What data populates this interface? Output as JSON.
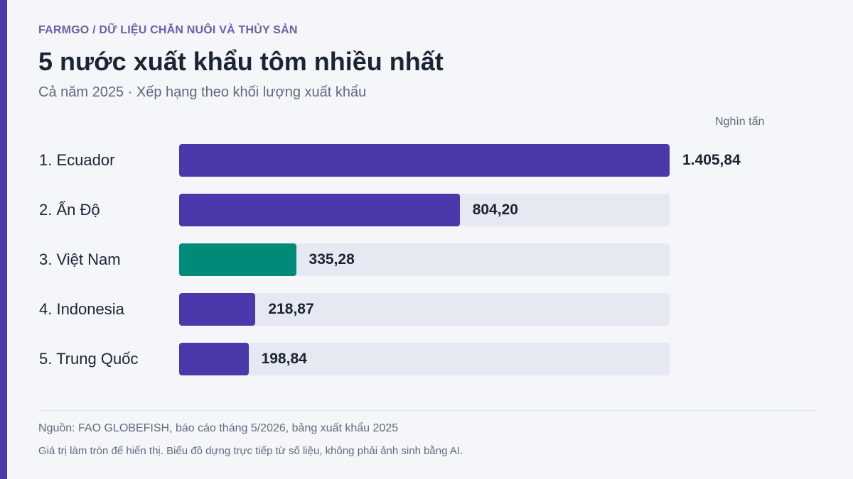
{
  "header": {
    "eyebrow": "FARMGO / DỮ LIỆU CHĂN NUÔI VÀ THỦY SẢN",
    "title": "5 nước xuất khẩu tôm nhiều nhất",
    "subtitle": "Cả năm 2025 · Xếp hạng theo khối lượng xuất khẩu"
  },
  "chart_data": {
    "type": "bar",
    "orientation": "horizontal",
    "unit_label": "Nghìn tấn",
    "categories": [
      "1. Ecuador",
      "2. Ấn Độ",
      "3. Việt Nam",
      "4. Indonesia",
      "5. Trung Quốc"
    ],
    "values": [
      1405.84,
      804.2,
      335.28,
      218.87,
      198.84
    ],
    "value_labels": [
      "1.405,84",
      "804,20",
      "335,28",
      "218,87",
      "198,84"
    ],
    "xlim": [
      0,
      1405.84
    ],
    "grid": false,
    "colors": {
      "default": "#4a39aa",
      "highlight": "#008b78",
      "track": "#e6e8f2"
    },
    "highlight_index": 2
  },
  "footer": {
    "source": "Nguồn: FAO GLOBEFISH, báo cáo tháng 5/2026, bảng xuất khẩu 2025",
    "note": "Giá trị làm tròn để hiển thị. Biểu đồ dựng trực tiếp từ số liệu, không phải ảnh sinh bằng AI."
  }
}
